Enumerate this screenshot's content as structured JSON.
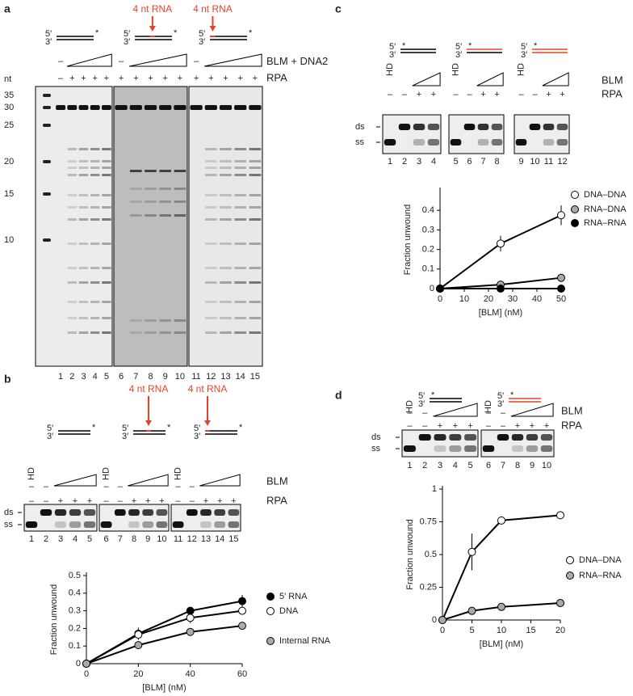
{
  "panel_labels": [
    "a",
    "b",
    "c",
    "d"
  ],
  "common": {
    "five": "5′",
    "three": "3′",
    "star": "*",
    "hd": "HD",
    "ds": "ds",
    "ss": "ss",
    "rna_note": "4 nt RNA"
  },
  "gel_a": {
    "treatment": "BLM + DNA2",
    "rpa": "RPA",
    "nt": "nt",
    "markers": [
      35,
      30,
      25,
      20,
      15,
      10
    ],
    "groups": [
      {
        "lanes": [
          1,
          2,
          3,
          4,
          5
        ],
        "row1": [
          "–"
        ],
        "row2": [
          "–",
          "+",
          "+",
          "+",
          "+"
        ]
      },
      {
        "lanes": [
          6,
          7,
          8,
          9,
          10
        ],
        "row1": [
          "–"
        ],
        "row2": [
          "+",
          "+",
          "+",
          "+",
          "+"
        ]
      },
      {
        "lanes": [
          11,
          12,
          13,
          14,
          15
        ],
        "row1": [
          "–"
        ],
        "row2": [
          "+",
          "+",
          "+",
          "+",
          "+"
        ]
      }
    ]
  },
  "gel_b": {
    "treatment": "BLM",
    "rpa": "RPA",
    "groups": [
      {
        "lanes": [
          1,
          2,
          3,
          4,
          5
        ],
        "row1": [
          "–",
          "–"
        ],
        "row2": [
          "–",
          "–",
          "+",
          "+",
          "+"
        ]
      },
      {
        "lanes": [
          6,
          7,
          8,
          9,
          10
        ],
        "row1": [
          "–",
          "–"
        ],
        "row2": [
          "–",
          "–",
          "+",
          "+",
          "+"
        ]
      },
      {
        "lanes": [
          11,
          12,
          13,
          14,
          15
        ],
        "row1": [
          "–",
          "–"
        ],
        "row2": [
          "–",
          "–",
          "+",
          "+",
          "+"
        ]
      }
    ]
  },
  "gel_c": {
    "treatment": "BLM",
    "rpa": "RPA",
    "groups": [
      {
        "lanes": [
          1,
          2,
          3,
          4
        ],
        "row2": [
          "–",
          "–",
          "+",
          "+"
        ]
      },
      {
        "lanes": [
          5,
          6,
          7,
          8
        ],
        "row2": [
          "–",
          "–",
          "+",
          "+"
        ]
      },
      {
        "lanes": [
          9,
          10,
          11,
          12
        ],
        "row2": [
          "–",
          "–",
          "+",
          "+"
        ]
      }
    ]
  },
  "gel_d": {
    "treatment": "BLM",
    "rpa": "RPA",
    "groups": [
      {
        "lanes": [
          1,
          2,
          3,
          4,
          5
        ],
        "row1": [
          "–",
          "–"
        ],
        "row2": [
          "–",
          "–",
          "+",
          "+",
          "+"
        ]
      },
      {
        "lanes": [
          6,
          7,
          8,
          9,
          10
        ],
        "row1": [
          "–",
          "–"
        ],
        "row2": [
          "–",
          "–",
          "+",
          "+",
          "+"
        ]
      }
    ]
  },
  "chart_data": [
    {
      "type": "line",
      "xlabel": "[BLM] (nM)",
      "ylabel": "Fraction unwound",
      "x": [
        0,
        20,
        40,
        60
      ],
      "xlim": [
        0,
        60
      ],
      "ylim": [
        0,
        0.5
      ],
      "xticks": [
        0,
        20,
        40,
        60
      ],
      "yticks": [
        0,
        0.1,
        0.2,
        0.3,
        0.4,
        0.5
      ],
      "series": [
        {
          "name": "5′ RNA",
          "color": "#000000",
          "values": [
            0,
            0.17,
            0.3,
            0.355
          ],
          "errors": [
            0,
            0.035,
            0.01,
            0.035
          ]
        },
        {
          "name": "DNA",
          "color": "#ffffff",
          "values": [
            0,
            0.165,
            0.26,
            0.3
          ],
          "errors": [
            0,
            0.02,
            0.03,
            0.02
          ]
        },
        {
          "name": "Internal RNA",
          "color": "#aaaaaa",
          "values": [
            0,
            0.105,
            0.18,
            0.215
          ],
          "errors": [
            0,
            0.02,
            0.015,
            0.015
          ]
        }
      ]
    },
    {
      "type": "line",
      "xlabel": "[BLM] (nM)",
      "ylabel": "Fraction unwound",
      "x": [
        0,
        25,
        50
      ],
      "xlim": [
        0,
        50
      ],
      "ylim": [
        0,
        0.5
      ],
      "xticks": [
        0,
        10,
        20,
        30,
        40,
        50
      ],
      "yticks": [
        0,
        0.1,
        0.2,
        0.3,
        0.4
      ],
      "series": [
        {
          "name": "DNA–DNA",
          "color": "#ffffff",
          "values": [
            0,
            0.23,
            0.375
          ],
          "errors": [
            0,
            0.04,
            0.05
          ]
        },
        {
          "name": "RNA–DNA",
          "color": "#aaaaaa",
          "values": [
            0,
            0.02,
            0.055
          ],
          "errors": [
            0,
            0.005,
            0.02
          ]
        },
        {
          "name": "RNA–RNA",
          "color": "#000000",
          "values": [
            0,
            0,
            0
          ],
          "errors": [
            0,
            0,
            0
          ]
        }
      ]
    },
    {
      "type": "line",
      "xlabel": "[BLM] (nM)",
      "ylabel": "Fraction unwound",
      "x": [
        0,
        5,
        10,
        20
      ],
      "xlim": [
        0,
        20
      ],
      "ylim": [
        0,
        1
      ],
      "xticks": [
        0,
        5,
        10,
        15,
        20
      ],
      "yticks": [
        0,
        0.25,
        0.5,
        0.75,
        1
      ],
      "series": [
        {
          "name": "DNA–DNA",
          "color": "#ffffff",
          "values": [
            0,
            0.52,
            0.76,
            0.8
          ],
          "errors": [
            0,
            0.14,
            0.03,
            0.01
          ]
        },
        {
          "name": "RNA–RNA",
          "color": "#aaaaaa",
          "values": [
            0,
            0.07,
            0.1,
            0.13
          ],
          "errors": [
            0,
            0.01,
            0.01,
            0.01
          ]
        }
      ]
    }
  ]
}
